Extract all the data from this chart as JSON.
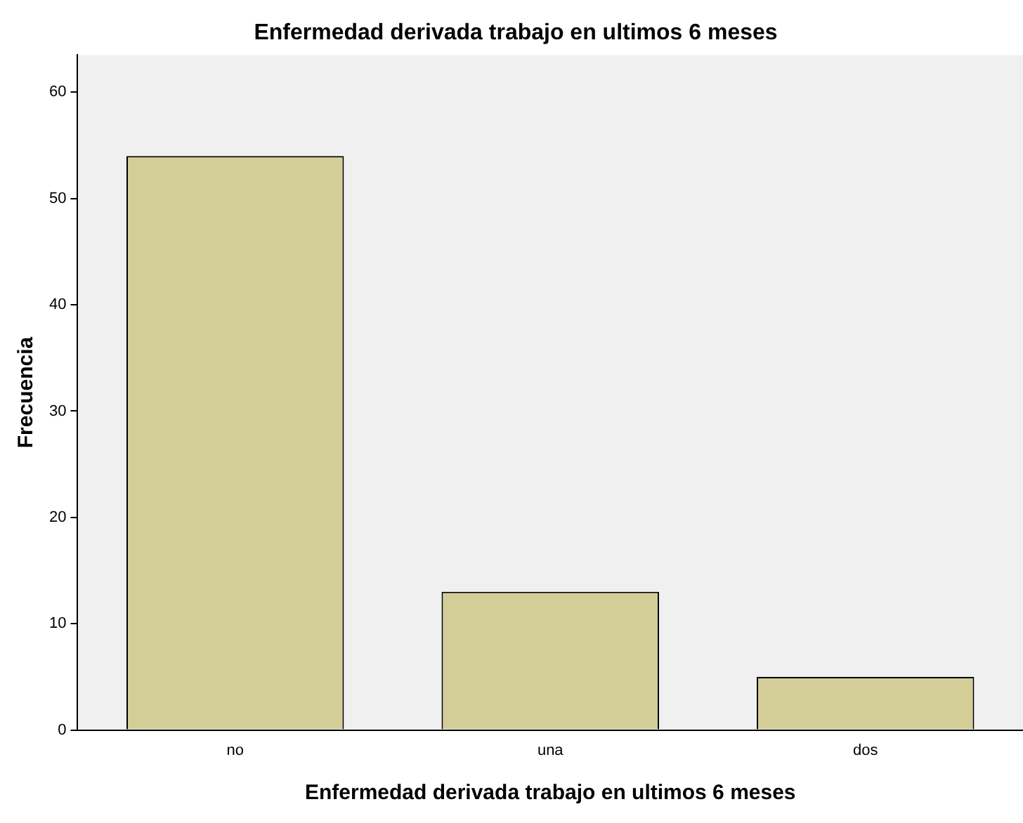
{
  "chart_data": {
    "type": "bar",
    "title": "Enfermedad derivada trabajo en ultimos 6 meses",
    "xlabel": "Enfermedad derivada trabajo en ultimos 6 meses",
    "ylabel": "Frecuencia",
    "categories": [
      "no",
      "una",
      "dos"
    ],
    "values": [
      54,
      13,
      5
    ],
    "color": "#d3ce97",
    "ylim": [
      0,
      63.5
    ],
    "yticks": [
      0,
      10,
      20,
      30,
      40,
      50,
      60
    ],
    "grid": false,
    "legend": false
  }
}
